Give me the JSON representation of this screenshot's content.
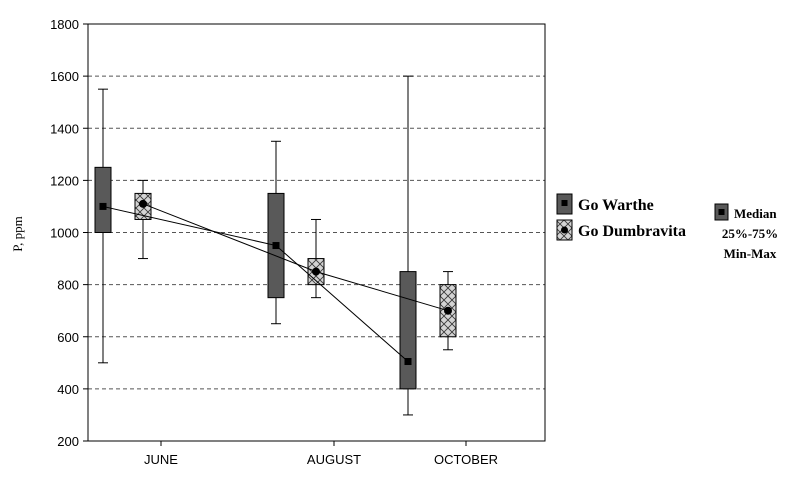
{
  "chart_data": {
    "type": "boxplot",
    "title": "",
    "xlabel": "",
    "ylabel": "P, ppm",
    "ylim": [
      200,
      1800
    ],
    "yticks": [
      200,
      400,
      600,
      800,
      1000,
      1200,
      1400,
      1600,
      1800
    ],
    "grid": "horizontal-dashed",
    "categories": [
      "JUNE",
      "AUGUST",
      "OCTOBER"
    ],
    "series": [
      {
        "name": "Go Warthe",
        "color": "#595959",
        "pattern": "solid",
        "stats": [
          {
            "median": 1100,
            "q1": 1000,
            "q3": 1250,
            "min": 500,
            "max": 1550
          },
          {
            "median": 950,
            "q1": 750,
            "q3": 1150,
            "min": 650,
            "max": 1350
          },
          {
            "median": 505,
            "q1": 400,
            "q3": 850,
            "min": 300,
            "max": 1600
          }
        ]
      },
      {
        "name": "Go Dumbravita",
        "color": "#c8c8c8",
        "pattern": "crosshatch",
        "stats": [
          {
            "median": 1110,
            "q1": 1050,
            "q3": 1150,
            "min": 900,
            "max": 1200
          },
          {
            "median": 850,
            "q1": 800,
            "q3": 900,
            "min": 750,
            "max": 1050
          },
          {
            "median": 700,
            "q1": 600,
            "q3": 800,
            "min": 550,
            "max": 850
          }
        ]
      }
    ],
    "legend": {
      "position": "right",
      "key_labels": [
        "Median",
        "25%-75%",
        "Min-Max"
      ]
    }
  }
}
